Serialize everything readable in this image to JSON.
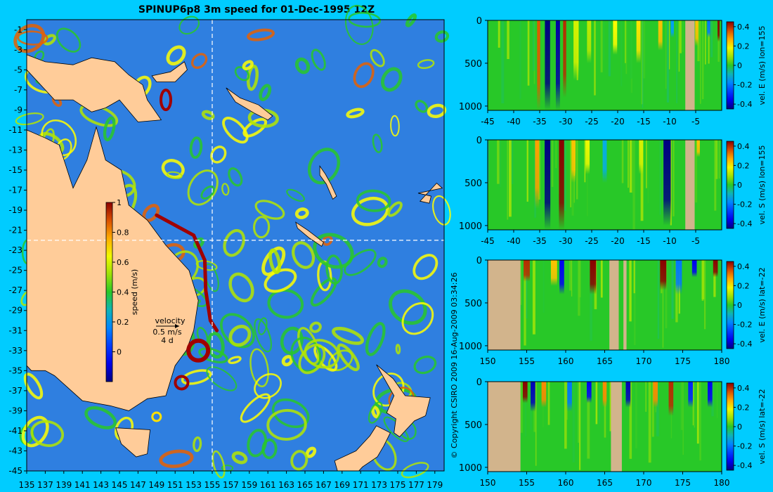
{
  "title": "SPINUP6p8 3m speed for 01-Dec-1995 12Z",
  "copyright": "© Copyright CSIRO 2009   16-Aug-2009 03:34:26",
  "colors": {
    "background": "#00ccff",
    "land": "#ffcc99",
    "section_mask": "#d2b48c",
    "grid_line": "#ffffff",
    "low_speed": "#2f7fe0",
    "high_speed": "#a00000"
  },
  "chart_data": [
    {
      "type": "heatmap",
      "title": "SPINUP6p8 3m speed for 01-Dec-1995 12Z",
      "x_ticks": [
        "135",
        "137",
        "139",
        "141",
        "143",
        "145",
        "147",
        "149",
        "151",
        "153",
        "155",
        "157",
        "159",
        "161",
        "163",
        "165",
        "167",
        "169",
        "171",
        "173",
        "175",
        "177",
        "179"
      ],
      "y_ticks": [
        "-1",
        "-3",
        "-5",
        "-7",
        "-9",
        "-11",
        "-13",
        "-15",
        "-17",
        "-19",
        "-21",
        "-23",
        "-25",
        "-27",
        "-29",
        "-31",
        "-33",
        "-35",
        "-37",
        "-39",
        "-41",
        "-43",
        "-45"
      ],
      "xlim": [
        135,
        180
      ],
      "ylim": [
        -45,
        0
      ],
      "section_lon": 155,
      "section_lat": -22,
      "colorbar": {
        "label": "speed (m/s)",
        "ticks": [
          "1",
          "0.8",
          "0.6",
          "0.4",
          "0.2",
          "0"
        ],
        "range": [
          -0.2,
          1
        ]
      },
      "velocity_key": {
        "label": "velocity",
        "speed": "0.5 m/s",
        "time": "4 d"
      }
    },
    {
      "type": "heatmap",
      "axis": "lat",
      "x_ticks": [
        "-45",
        "-40",
        "-35",
        "-30",
        "-25",
        "-20",
        "-15",
        "-10",
        "-5"
      ],
      "y_ticks": [
        "0",
        "500",
        "1000"
      ],
      "xlim": [
        -45,
        0
      ],
      "ylim": [
        1050,
        0
      ],
      "colorbar_label": "vel. E (m/s) lon=155",
      "colorbar_ticks": [
        "0.4",
        "0.2",
        "0",
        "-0.2",
        "-0.4"
      ],
      "range": [
        -0.45,
        0.45
      ],
      "mask_columns": [
        [
          -7.0,
          -5.2
        ]
      ],
      "features": [
        {
          "x": -35.2,
          "value": 0.35,
          "width": 0.6,
          "depth": 1050
        },
        {
          "x": -33.5,
          "value": -0.45,
          "width": 1.0,
          "depth": 1050
        },
        {
          "x": -31.5,
          "value": -0.42,
          "width": 0.8,
          "depth": 1050
        },
        {
          "x": -30.2,
          "value": 0.4,
          "width": 0.6,
          "depth": 900
        },
        {
          "x": -28.0,
          "value": 0.15,
          "width": 1.0,
          "depth": 700
        },
        {
          "x": -25.5,
          "value": 0.12,
          "width": 0.8,
          "depth": 500
        },
        {
          "x": -20.5,
          "value": 0.2,
          "width": 0.8,
          "depth": 400
        },
        {
          "x": -16.0,
          "value": 0.22,
          "width": 0.8,
          "depth": 500
        },
        {
          "x": -11.8,
          "value": 0.25,
          "width": 0.8,
          "depth": 350
        },
        {
          "x": -9.5,
          "value": -0.15,
          "width": 0.6,
          "depth": 200
        },
        {
          "x": -4.8,
          "value": 0.25,
          "width": 0.6,
          "depth": 300
        },
        {
          "x": -2.5,
          "value": -0.2,
          "width": 0.6,
          "depth": 200
        },
        {
          "x": -0.6,
          "value": 0.45,
          "width": 0.4,
          "depth": 250
        }
      ]
    },
    {
      "type": "heatmap",
      "axis": "lat",
      "x_ticks": [
        "-45",
        "-40",
        "-35",
        "-30",
        "-25",
        "-20",
        "-15",
        "-10",
        "-5"
      ],
      "y_ticks": [
        "0",
        "500",
        "1000"
      ],
      "xlim": [
        -45,
        0
      ],
      "ylim": [
        1050,
        0
      ],
      "colorbar_label": "vel. S (m/s) lon=155",
      "colorbar_ticks": [
        "0.4",
        "0.2",
        "0",
        "-0.2",
        "-0.4"
      ],
      "range": [
        -0.45,
        0.45
      ],
      "mask_columns": [
        [
          -7.0,
          -5.2
        ]
      ],
      "features": [
        {
          "x": -35.5,
          "value": 0.28,
          "width": 0.8,
          "depth": 800
        },
        {
          "x": -33.5,
          "value": -0.45,
          "width": 1.1,
          "depth": 1050
        },
        {
          "x": -30.8,
          "value": 0.45,
          "width": 1.0,
          "depth": 1050
        },
        {
          "x": -28.5,
          "value": 0.25,
          "width": 0.8,
          "depth": 500
        },
        {
          "x": -25.8,
          "value": 0.18,
          "width": 0.8,
          "depth": 400
        },
        {
          "x": -22.5,
          "value": -0.12,
          "width": 0.8,
          "depth": 500
        },
        {
          "x": -15.5,
          "value": 0.15,
          "width": 0.8,
          "depth": 400
        },
        {
          "x": -10.5,
          "value": -0.45,
          "width": 1.4,
          "depth": 1000
        },
        {
          "x": -4.5,
          "value": 0.25,
          "width": 0.6,
          "depth": 200
        }
      ]
    },
    {
      "type": "heatmap",
      "axis": "lon",
      "x_ticks": [
        "150",
        "155",
        "160",
        "165",
        "170",
        "175",
        "180"
      ],
      "y_ticks": [
        "0",
        "500",
        "1000"
      ],
      "xlim": [
        150,
        180
      ],
      "ylim": [
        1050,
        0
      ],
      "colorbar_label": "vel. E (m/s) lat=-22",
      "colorbar_ticks": [
        "0.4",
        "0.2",
        "0",
        "-0.2",
        "-0.4"
      ],
      "range": [
        -0.45,
        0.45
      ],
      "mask_columns": [
        [
          150,
          154.2
        ],
        [
          165.6,
          166.8
        ],
        [
          167.4,
          167.8
        ]
      ],
      "features": [
        {
          "x": 155.0,
          "value": 0.4,
          "width": 0.8,
          "depth": 250
        },
        {
          "x": 158.5,
          "value": 0.25,
          "width": 0.8,
          "depth": 300
        },
        {
          "x": 159.5,
          "value": -0.35,
          "width": 0.6,
          "depth": 400
        },
        {
          "x": 163.5,
          "value": 0.45,
          "width": 0.8,
          "depth": 400
        },
        {
          "x": 172.5,
          "value": 0.45,
          "width": 0.8,
          "depth": 350
        },
        {
          "x": 174.5,
          "value": -0.2,
          "width": 0.8,
          "depth": 400
        },
        {
          "x": 176.5,
          "value": -0.35,
          "width": 0.6,
          "depth": 200
        },
        {
          "x": 179.2,
          "value": 0.45,
          "width": 0.6,
          "depth": 200
        }
      ]
    },
    {
      "type": "heatmap",
      "axis": "lon",
      "x_ticks": [
        "150",
        "155",
        "160",
        "165",
        "170",
        "175",
        "180"
      ],
      "y_ticks": [
        "0",
        "500",
        "1000"
      ],
      "xlim": [
        150,
        180
      ],
      "ylim": [
        1050,
        0
      ],
      "colorbar_label": "vel. S (m/s) lat=-22",
      "colorbar_ticks": [
        "0.4",
        "0.2",
        "0",
        "-0.2",
        "-0.4"
      ],
      "range": [
        -0.45,
        0.45
      ],
      "mask_columns": [
        [
          150,
          154.2
        ],
        [
          165.8,
          167.2
        ]
      ],
      "features": [
        {
          "x": 154.8,
          "value": 0.45,
          "width": 0.6,
          "depth": 250
        },
        {
          "x": 155.8,
          "value": -0.4,
          "width": 0.6,
          "depth": 350
        },
        {
          "x": 157.2,
          "value": 0.3,
          "width": 0.6,
          "depth": 300
        },
        {
          "x": 160.5,
          "value": -0.2,
          "width": 0.6,
          "depth": 350
        },
        {
          "x": 163.0,
          "value": -0.35,
          "width": 0.6,
          "depth": 250
        },
        {
          "x": 165.0,
          "value": 0.3,
          "width": 0.5,
          "depth": 300
        },
        {
          "x": 168.0,
          "value": -0.4,
          "width": 0.6,
          "depth": 300
        },
        {
          "x": 171.5,
          "value": 0.3,
          "width": 0.6,
          "depth": 300
        },
        {
          "x": 173.5,
          "value": 0.4,
          "width": 0.6,
          "depth": 400
        },
        {
          "x": 176.0,
          "value": -0.3,
          "width": 0.6,
          "depth": 300
        },
        {
          "x": 178.5,
          "value": -0.35,
          "width": 0.6,
          "depth": 300
        }
      ]
    }
  ]
}
